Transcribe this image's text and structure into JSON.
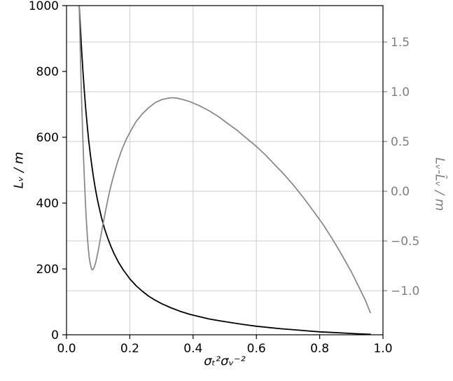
{
  "chart_data": {
    "type": "line",
    "title": "",
    "xlabel": "σₜ²σᵥ⁻²",
    "ylabel_left": "Lᵥ / m",
    "ylabel_right": "Lᵥ-L̂ᵥ / m",
    "xlim": [
      0.0,
      1.0
    ],
    "ylim_left": [
      0,
      1000
    ],
    "ylim_right": [
      -1.443,
      1.866
    ],
    "x_ticks": [
      0.0,
      0.2,
      0.4,
      0.6,
      0.8,
      1.0
    ],
    "x_tick_labels": [
      "0.0",
      "0.2",
      "0.4",
      "0.6",
      "0.8",
      "1.0"
    ],
    "y_ticks_left": [
      0,
      200,
      400,
      600,
      800,
      1000
    ],
    "y_tick_labels_left": [
      "0",
      "200",
      "400",
      "600",
      "800",
      "1000"
    ],
    "y_ticks_right": [
      -1.0,
      -0.5,
      0.0,
      0.5,
      1.0,
      1.5
    ],
    "y_tick_labels_right": [
      "−1.0",
      "−0.5",
      "0.0",
      "0.5",
      "1.0",
      "1.5"
    ],
    "grid": {
      "vertical_at_x_ticks": true,
      "horizontal_at_right_ticks": true,
      "color": "#cccccc"
    },
    "series": [
      {
        "name": "Lᵥ",
        "axis": "left",
        "color": "#000000",
        "data_name": "curve-Lv-black",
        "points": [
          [
            0.04,
            1000
          ],
          [
            0.044,
            930
          ],
          [
            0.048,
            860
          ],
          [
            0.052,
            800
          ],
          [
            0.056,
            745
          ],
          [
            0.06,
            695
          ],
          [
            0.065,
            640
          ],
          [
            0.07,
            592
          ],
          [
            0.075,
            550
          ],
          [
            0.08,
            513
          ],
          [
            0.085,
            480
          ],
          [
            0.09,
            450
          ],
          [
            0.095,
            424
          ],
          [
            0.1,
            400
          ],
          [
            0.11,
            358
          ],
          [
            0.12,
            323
          ],
          [
            0.13,
            294
          ],
          [
            0.14,
            269
          ],
          [
            0.15,
            247
          ],
          [
            0.165,
            219
          ],
          [
            0.18,
            196
          ],
          [
            0.2,
            170
          ],
          [
            0.22,
            149
          ],
          [
            0.24,
            132
          ],
          [
            0.26,
            117
          ],
          [
            0.28,
            105
          ],
          [
            0.3,
            95
          ],
          [
            0.33,
            82
          ],
          [
            0.36,
            71
          ],
          [
            0.39,
            62
          ],
          [
            0.42,
            55
          ],
          [
            0.45,
            48
          ],
          [
            0.48,
            43
          ],
          [
            0.52,
            37
          ],
          [
            0.56,
            31
          ],
          [
            0.6,
            26
          ],
          [
            0.64,
            22
          ],
          [
            0.68,
            18
          ],
          [
            0.72,
            15
          ],
          [
            0.76,
            12
          ],
          [
            0.8,
            9
          ],
          [
            0.84,
            7
          ],
          [
            0.88,
            5
          ],
          [
            0.92,
            3
          ],
          [
            0.95,
            2
          ],
          [
            0.96,
            1.5
          ]
        ]
      },
      {
        "name": "Lᵥ-L̂ᵥ",
        "axis": "right",
        "color": "#8a8a8a",
        "data_name": "curve-Lv-error-gray",
        "points": [
          [
            0.04,
            1.87
          ],
          [
            0.042,
            1.6
          ],
          [
            0.044,
            1.35
          ],
          [
            0.046,
            1.1
          ],
          [
            0.048,
            0.88
          ],
          [
            0.051,
            0.58
          ],
          [
            0.054,
            0.32
          ],
          [
            0.057,
            0.08
          ],
          [
            0.06,
            -0.13
          ],
          [
            0.063,
            -0.31
          ],
          [
            0.066,
            -0.46
          ],
          [
            0.069,
            -0.58
          ],
          [
            0.072,
            -0.67
          ],
          [
            0.075,
            -0.73
          ],
          [
            0.078,
            -0.77
          ],
          [
            0.081,
            -0.79
          ],
          [
            0.084,
            -0.785
          ],
          [
            0.088,
            -0.76
          ],
          [
            0.092,
            -0.72
          ],
          [
            0.096,
            -0.66
          ],
          [
            0.1,
            -0.6
          ],
          [
            0.108,
            -0.46
          ],
          [
            0.116,
            -0.32
          ],
          [
            0.124,
            -0.19
          ],
          [
            0.132,
            -0.06
          ],
          [
            0.14,
            0.05
          ],
          [
            0.15,
            0.17
          ],
          [
            0.162,
            0.3
          ],
          [
            0.175,
            0.42
          ],
          [
            0.19,
            0.53
          ],
          [
            0.205,
            0.62
          ],
          [
            0.22,
            0.7
          ],
          [
            0.24,
            0.78
          ],
          [
            0.26,
            0.84
          ],
          [
            0.28,
            0.89
          ],
          [
            0.3,
            0.92
          ],
          [
            0.32,
            0.935
          ],
          [
            0.335,
            0.94
          ],
          [
            0.35,
            0.935
          ],
          [
            0.37,
            0.92
          ],
          [
            0.39,
            0.9
          ],
          [
            0.42,
            0.86
          ],
          [
            0.45,
            0.81
          ],
          [
            0.48,
            0.75
          ],
          [
            0.51,
            0.68
          ],
          [
            0.54,
            0.61
          ],
          [
            0.57,
            0.53
          ],
          [
            0.6,
            0.45
          ],
          [
            0.63,
            0.36
          ],
          [
            0.66,
            0.26
          ],
          [
            0.69,
            0.16
          ],
          [
            0.72,
            0.05
          ],
          [
            0.75,
            -0.07
          ],
          [
            0.78,
            -0.2
          ],
          [
            0.81,
            -0.33
          ],
          [
            0.84,
            -0.48
          ],
          [
            0.87,
            -0.64
          ],
          [
            0.9,
            -0.81
          ],
          [
            0.925,
            -0.97
          ],
          [
            0.945,
            -1.1
          ],
          [
            0.96,
            -1.22
          ]
        ]
      }
    ]
  },
  "colors": {
    "left_axis_text": "#000000",
    "right_axis_text": "#7f7f7f",
    "grid": "#cccccc",
    "background": "#ffffff"
  }
}
